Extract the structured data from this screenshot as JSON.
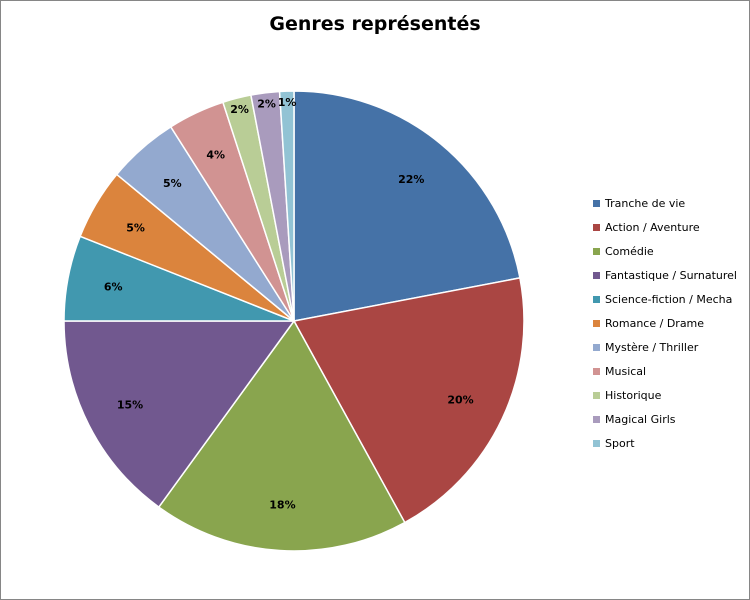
{
  "chart_data": {
    "type": "pie",
    "title": "Genres représentés",
    "labels": [
      "Tranche de vie",
      "Action / Aventure",
      "Comédie",
      "Fantastique / Surnaturel",
      "Science-fiction / Mecha",
      "Romance / Drame",
      "Mystère / Thriller",
      "Musical",
      "Historique",
      "Magical Girls",
      "Sport"
    ],
    "values": [
      22,
      20,
      18,
      15,
      6,
      5,
      5,
      4,
      2,
      2,
      1
    ],
    "value_labels": [
      "22%",
      "20%",
      "18%",
      "15%",
      "6%",
      "5%",
      "5%",
      "4%",
      "2%",
      "2%",
      "1%"
    ],
    "colors": [
      "#4572A7",
      "#AA4643",
      "#89A54E",
      "#71588F",
      "#4198AF",
      "#DB843D",
      "#93A9CF",
      "#D19392",
      "#B9CD96",
      "#A99BBD",
      "#92C3D4"
    ],
    "legend_position": "right",
    "start": "12 o'clock, clockwise"
  }
}
